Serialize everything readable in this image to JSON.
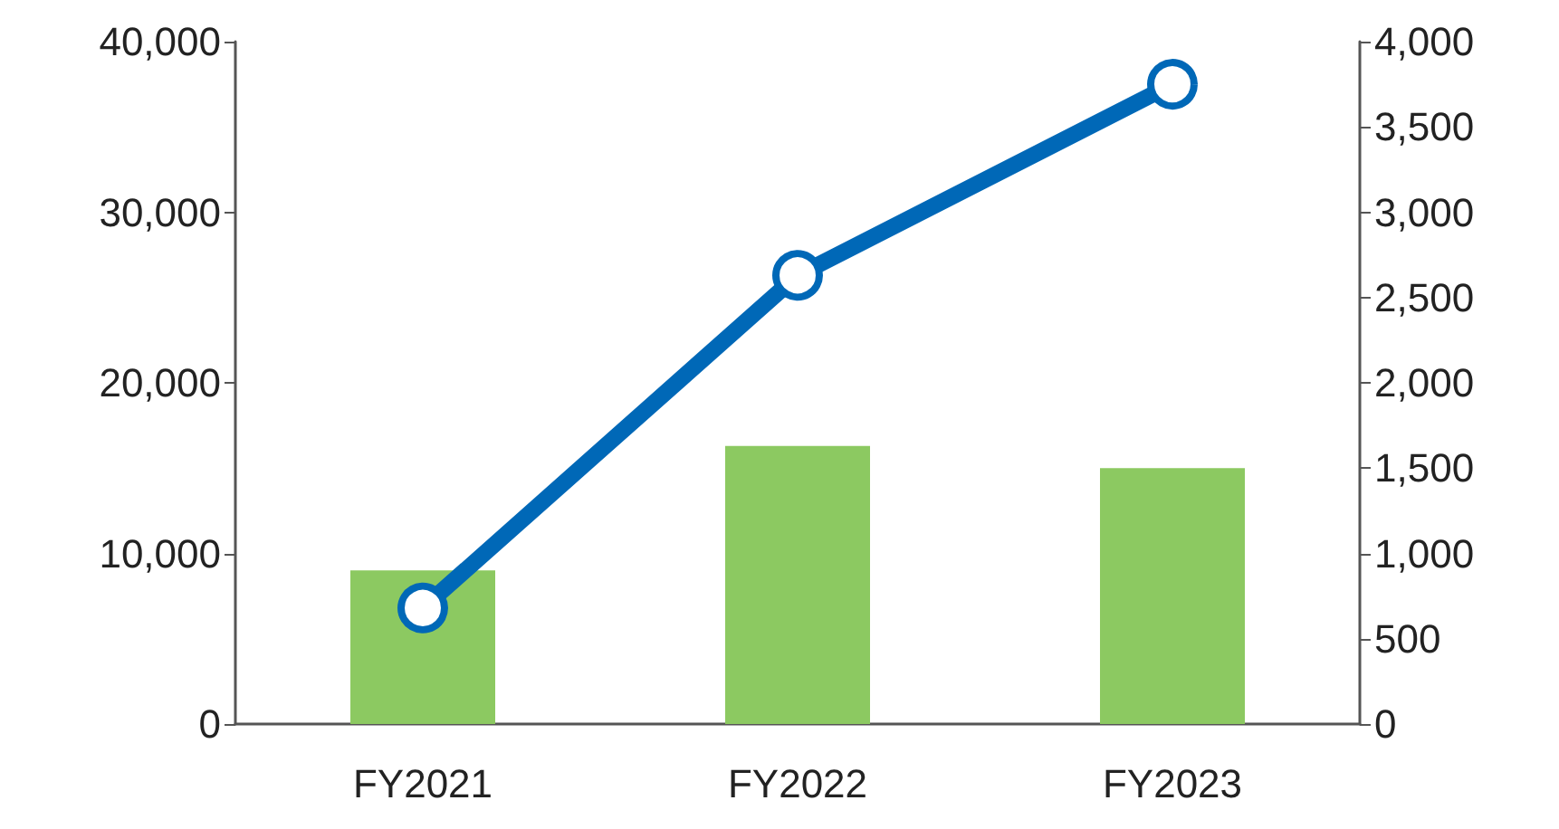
{
  "chart_data": {
    "type": "bar",
    "categories": [
      "FY2021",
      "FY2022",
      "FY2023"
    ],
    "series": [
      {
        "color": "#8cc961",
        "values": [
          9000,
          16300,
          15000
        ]
      },
      {
        "type": "line",
        "axis": "y2",
        "color": "#0068b7",
        "values": [
          680,
          2630,
          3750
        ],
        "marker": "circle",
        "line_style": "solid"
      }
    ],
    "ylim": [
      0,
      40000
    ],
    "yticks": [
      0,
      {
        "value": 10000,
        "label": "10,000"
      },
      {
        "value": 20000,
        "label": "20,000"
      },
      {
        "value": 30000,
        "label": "30,000"
      },
      {
        "value": 40000,
        "label": "40,000"
      }
    ],
    "y2lim": [
      0,
      4000
    ],
    "y2ticks": [
      0,
      500,
      {
        "value": 1000,
        "label": "1,000"
      },
      {
        "value": 1500,
        "label": "1,500"
      },
      {
        "value": 2000,
        "label": "2,000"
      },
      {
        "value": 2500,
        "label": "2,500"
      },
      {
        "value": 3000,
        "label": "3,000"
      },
      {
        "value": 3500,
        "label": "3,500"
      },
      {
        "value": 4000,
        "label": "4,000"
      }
    ],
    "grid": false
  }
}
